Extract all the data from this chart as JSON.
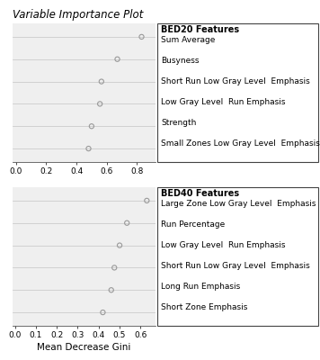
{
  "title": "Variable Importance Plot",
  "xlabel": "Mean Decrease Gini",
  "bed20": {
    "label": "BED20 Features",
    "features": [
      "Sum Average",
      "Busyness",
      "Short Run Low Gray Level  Emphasis",
      "Low Gray Level  Run Emphasis",
      "Strength",
      "Small Zones Low Gray Level  Emphasis"
    ],
    "values": [
      0.83,
      0.67,
      0.565,
      0.555,
      0.5,
      0.48
    ],
    "xlim": [
      -0.02,
      0.92
    ],
    "xticks": [
      0.0,
      0.2,
      0.4,
      0.6,
      0.8
    ],
    "xticklabels": [
      "0.0",
      "0.2",
      "0.4",
      "0.6",
      "0.8"
    ]
  },
  "bed40": {
    "label": "BED40 Features",
    "features": [
      "Large Zone Low Gray Level  Emphasis",
      "Run Percentage",
      "Low Gray Level  Run Emphasis",
      "Short Run Low Gray Level  Emphasis",
      "Long Run Emphasis",
      "Short Zone Emphasis"
    ],
    "values": [
      0.63,
      0.535,
      0.5,
      0.475,
      0.46,
      0.42
    ],
    "xlim": [
      -0.01,
      0.67
    ],
    "xticks": [
      0.0,
      0.1,
      0.2,
      0.3,
      0.4,
      0.5,
      0.6
    ],
    "xticklabels": [
      "0.0",
      "0.1",
      "0.2",
      "0.3",
      "0.4",
      "0.5",
      "0.6"
    ]
  },
  "dot_color": "#999999",
  "line_color": "#cccccc",
  "bg_color": "#ffffff",
  "panel_bg": "#efefef",
  "border_color": "#444444",
  "title_fontsize": 8.5,
  "label_fontsize": 7.5,
  "tick_fontsize": 6.5,
  "feature_fontsize": 6.5,
  "bold_fontsize": 7,
  "dot_size": 14,
  "dot_marker": "o"
}
